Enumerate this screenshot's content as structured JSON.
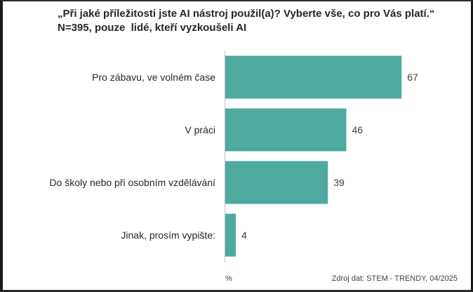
{
  "chart_data": {
    "type": "bar",
    "orientation": "horizontal",
    "title_line1": "„Při jaké příležitosti jste AI nástroj použil(a)? Vyberte vše, co pro Vás platí.“",
    "title_line2": "N=395, pouze  lidé, kteří vyzkoušeli AI",
    "categories": [
      "Pro zábavu, ve volném čase",
      "V práci",
      "Do školy nebo při osobním vzdělávání",
      "Jinak, prosím vypište:"
    ],
    "values": [
      67,
      46,
      39,
      4
    ],
    "xlim": [
      0,
      100
    ],
    "unit": "%",
    "source": "Zdroj dat: STEM - TRENDY, 04/2025",
    "bar_color": "#4ea99f",
    "grid": false
  }
}
